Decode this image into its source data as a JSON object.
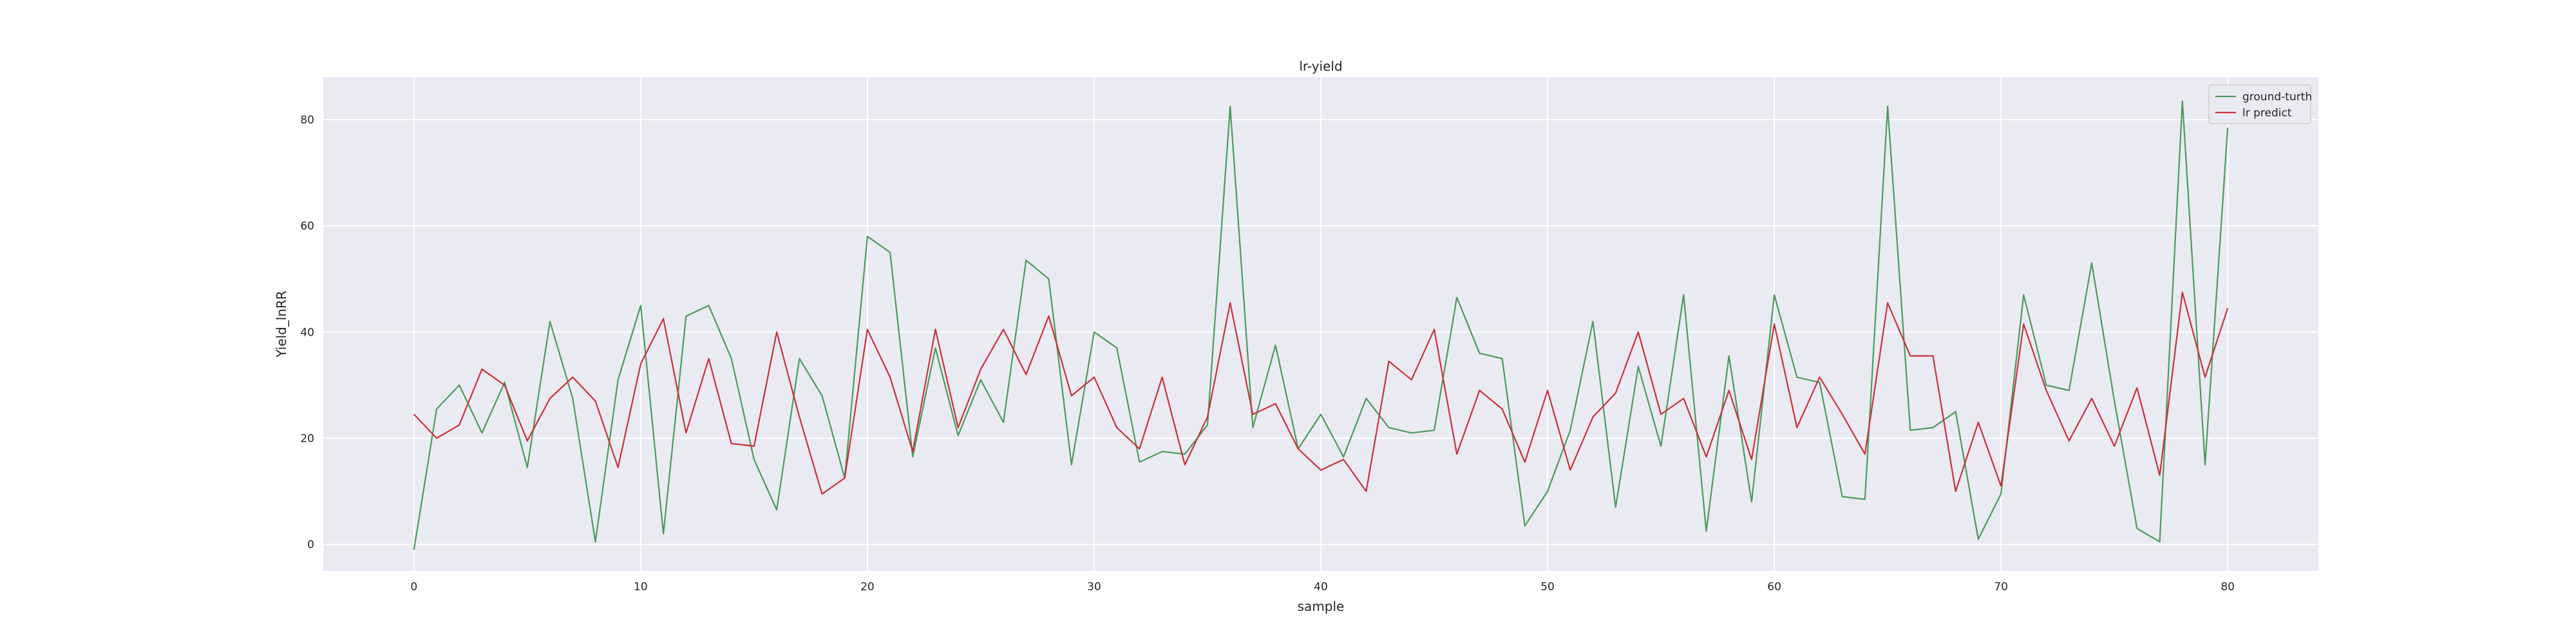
{
  "chart_data": {
    "type": "line",
    "title": "lr-yield",
    "xlabel": "sample",
    "ylabel": "Yield_lnRR",
    "xlim": [
      -4,
      84
    ],
    "ylim": [
      -5,
      88
    ],
    "xticks": [
      0,
      10,
      20,
      30,
      40,
      50,
      60,
      70,
      80
    ],
    "yticks": [
      0,
      20,
      40,
      60,
      80
    ],
    "grid": true,
    "legend_position": "top-right",
    "x": [
      0,
      1,
      2,
      3,
      4,
      5,
      6,
      7,
      8,
      9,
      10,
      11,
      12,
      13,
      14,
      15,
      16,
      17,
      18,
      19,
      20,
      21,
      22,
      23,
      24,
      25,
      26,
      27,
      28,
      29,
      30,
      31,
      32,
      33,
      34,
      35,
      36,
      37,
      38,
      39,
      40,
      41,
      42,
      43,
      44,
      45,
      46,
      47,
      48,
      49,
      50,
      51,
      52,
      53,
      54,
      55,
      56,
      57,
      58,
      59,
      60,
      61,
      62,
      63,
      64,
      65,
      66,
      67,
      68,
      69,
      70,
      71,
      72,
      73,
      74,
      75,
      76,
      77,
      78,
      79,
      80
    ],
    "series": [
      {
        "name": "ground-turth",
        "color": "#4c9a5e",
        "values": [
          -1,
          25.5,
          30,
          21,
          30.5,
          14.5,
          42,
          27.5,
          0.5,
          31,
          45,
          2,
          43,
          45,
          35,
          16,
          6.5,
          35,
          28,
          12.5,
          58,
          55,
          16.5,
          37,
          20.5,
          31,
          23,
          53.5,
          50,
          15,
          40,
          37,
          15.5,
          17.5,
          17,
          22.5,
          82.5,
          22,
          37.5,
          18,
          24.5,
          16.5,
          27.5,
          22,
          21,
          21.5,
          46.5,
          36,
          35,
          3.5,
          10,
          21.5,
          42,
          7,
          33.5,
          18.5,
          47,
          2.5,
          35.5,
          8,
          47,
          31.5,
          30.5,
          9,
          8.5,
          82.5,
          21.5,
          22,
          25,
          1,
          9.5,
          47,
          30,
          29,
          53,
          27,
          3,
          0.5,
          83.5,
          15,
          78.5
        ]
      },
      {
        "name": "lr predict",
        "color": "#c8323c",
        "values": [
          24.5,
          20,
          22.5,
          33,
          30,
          19.5,
          27.5,
          31.5,
          27,
          14.5,
          34,
          42.5,
          21,
          35,
          19,
          18.5,
          40,
          24,
          9.5,
          12.5,
          40.5,
          31.5,
          17.5,
          40.5,
          22,
          33,
          40.5,
          32,
          43,
          28,
          31.5,
          22,
          18,
          31.5,
          15,
          24,
          45.5,
          24.5,
          26.5,
          18,
          14,
          16,
          10,
          34.5,
          31,
          40.5,
          17,
          29,
          25.5,
          15.5,
          29,
          14,
          24,
          28.5,
          40,
          24.5,
          27.5,
          16.5,
          29,
          16,
          41.5,
          22,
          31.5,
          24.5,
          17,
          45.5,
          35.5,
          35.5,
          10,
          23,
          11,
          41.5,
          29,
          19.5,
          27.5,
          18.5,
          29.5,
          13,
          47.5,
          31.5,
          44.5
        ]
      }
    ]
  },
  "style": {
    "plot_background": "#eaeaf2",
    "grid_color": "#ffffff"
  }
}
